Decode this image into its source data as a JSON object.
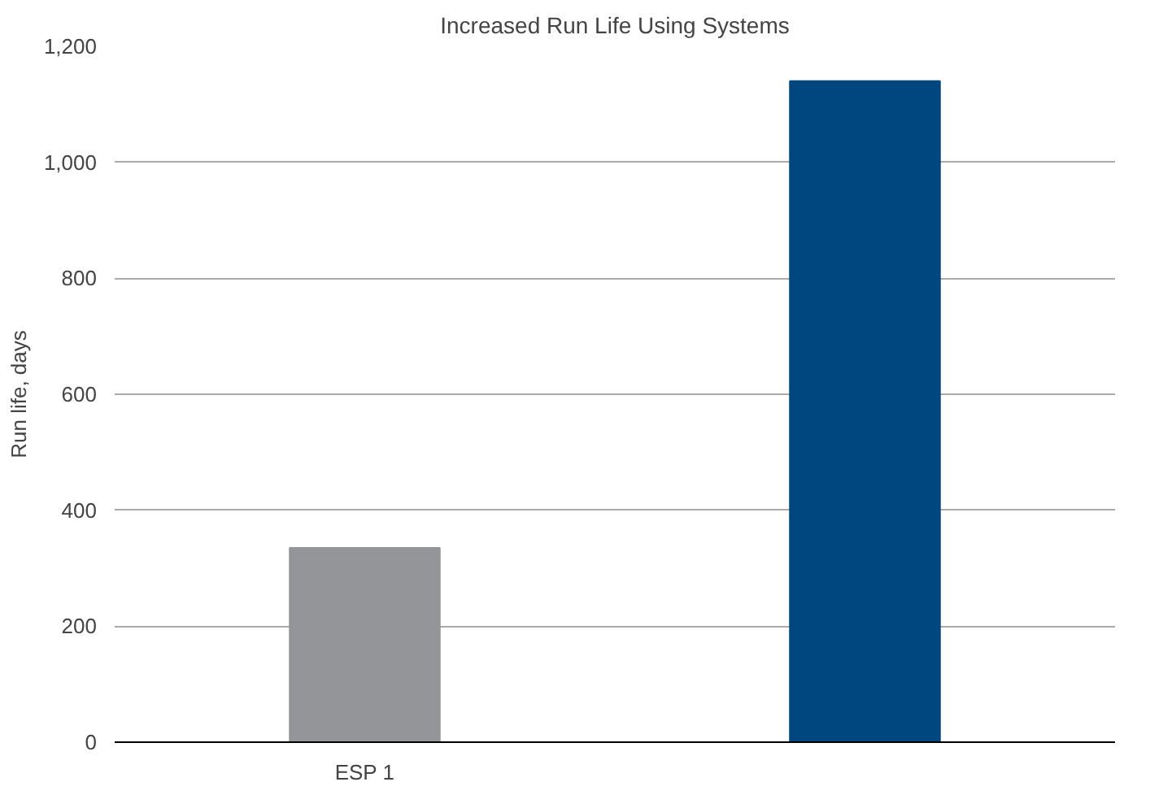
{
  "chart_data": {
    "type": "bar",
    "title": "Increased Run Life Using Systems",
    "ylabel": "Run life, days",
    "categories": [
      "ESP 1",
      null
    ],
    "values": [
      335,
      1140
    ],
    "colors": [
      "#939598",
      "#00467f"
    ],
    "ylim": [
      0,
      1200
    ],
    "yticks": [
      0,
      200,
      400,
      600,
      800,
      {
        "value": 1000,
        "label": "1,000"
      },
      {
        "value": 1200,
        "label": "1,200"
      }
    ],
    "grid": "y"
  }
}
